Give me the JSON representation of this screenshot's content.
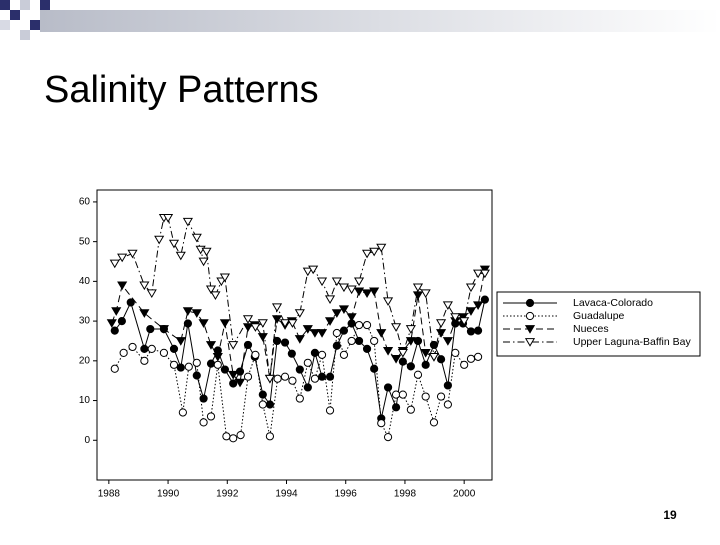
{
  "slide": {
    "title": "Salinity Patterns",
    "page_number": "19"
  },
  "chart_data": {
    "type": "line",
    "xlim": [
      1987.6,
      2000.94
    ],
    "ylim": [
      -10,
      63
    ],
    "xticks": [
      1988,
      1990,
      1992,
      1994,
      1996,
      1998,
      2000
    ],
    "yticks": [
      0,
      10,
      20,
      30,
      40,
      50,
      60
    ],
    "grid": false,
    "legend": "right",
    "series": [
      {
        "name": "Lavaca-Colorado",
        "color": "#000000",
        "marker": "circle",
        "filled": true,
        "linestyle": "solid",
        "x": [
          1988.2,
          1988.44,
          1988.74,
          1989.2,
          1989.4,
          1989.86,
          1990.2,
          1990.43,
          1990.67,
          1990.97,
          1991.2,
          1991.45,
          1991.68,
          1991.92,
          1992.2,
          1992.43,
          1992.7,
          1992.93,
          1993.2,
          1993.44,
          1993.68,
          1993.95,
          1994.18,
          1994.45,
          1994.72,
          1994.96,
          1995.2,
          1995.47,
          1995.7,
          1995.94,
          1996.2,
          1996.45,
          1996.72,
          1996.96,
          1997.2,
          1997.43,
          1997.7,
          1997.93,
          1998.2,
          1998.44,
          1998.7,
          1998.98,
          1999.22,
          1999.45,
          1999.7,
          1999.96,
          2000.23,
          2000.47,
          2000.7
        ],
        "values": [
          27.6,
          30,
          34.7,
          23,
          28,
          28,
          23,
          18.3,
          29.4,
          16.3,
          10.5,
          19.3,
          22.6,
          17.8,
          14.3,
          17.3,
          24,
          21,
          11.5,
          9,
          25,
          24.6,
          21.8,
          17.8,
          13.3,
          22,
          16,
          16,
          23.8,
          27.6,
          29.4,
          25,
          23,
          18,
          5.5,
          13.3,
          8.3,
          19.8,
          18.6,
          25,
          19,
          24,
          20.4,
          13.8,
          29.4,
          29.4,
          27.4,
          27.6,
          35.4
        ]
      },
      {
        "name": "Guadalupe",
        "color": "#000000",
        "marker": "circle",
        "filled": false,
        "linestyle": "dotted",
        "x": [
          1988.2,
          1988.5,
          1988.8,
          1989.2,
          1989.45,
          1989.86,
          1990.2,
          1990.5,
          1990.7,
          1990.97,
          1991.2,
          1991.45,
          1991.68,
          1991.97,
          1992.2,
          1992.45,
          1992.7,
          1992.95,
          1993.2,
          1993.44,
          1993.7,
          1993.95,
          1994.2,
          1994.45,
          1994.72,
          1994.96,
          1995.2,
          1995.47,
          1995.7,
          1995.94,
          1996.2,
          1996.45,
          1996.72,
          1996.96,
          1997.2,
          1997.43,
          1997.7,
          1997.93,
          1998.2,
          1998.44,
          1998.7,
          1998.98,
          1999.22,
          1999.45,
          1999.7,
          2000.0,
          2000.23,
          2000.47
        ],
        "values": [
          18,
          22,
          23.5,
          20,
          23,
          22,
          19,
          7,
          18.5,
          19.5,
          4.5,
          6,
          19,
          1,
          0.5,
          1.3,
          16,
          21.5,
          9,
          1,
          15.5,
          16,
          15,
          10.5,
          19.5,
          15.5,
          21.5,
          7.5,
          27,
          21.5,
          25,
          29,
          29,
          25,
          4.3,
          0.8,
          11.5,
          11.5,
          7.7,
          16.5,
          11,
          4.5,
          11,
          9,
          22,
          19,
          20.5,
          21
        ]
      },
      {
        "name": "Nueces",
        "color": "#000000",
        "marker": "triangle-down",
        "filled": true,
        "linestyle": "dashed",
        "x": [
          1988.1,
          1988.25,
          1988.45,
          1989.2,
          1989.86,
          1990.43,
          1990.67,
          1990.97,
          1991.2,
          1991.45,
          1991.68,
          1991.92,
          1992.2,
          1992.43,
          1992.7,
          1992.93,
          1993.2,
          1993.44,
          1993.68,
          1993.95,
          1994.18,
          1994.45,
          1994.72,
          1994.96,
          1995.2,
          1995.47,
          1995.7,
          1995.94,
          1996.2,
          1996.45,
          1996.72,
          1996.96,
          1997.2,
          1997.43,
          1997.7,
          1997.93,
          1998.2,
          1998.44,
          1998.7,
          1998.98,
          1999.22,
          1999.45,
          1999.7,
          1999.96,
          2000.23,
          2000.47,
          2000.7
        ],
        "values": [
          29.5,
          32.5,
          39,
          32,
          28,
          25,
          32.5,
          32,
          29.5,
          24,
          21,
          29.5,
          16.5,
          14.5,
          28.5,
          29,
          26,
          15.5,
          30.5,
          29,
          30,
          25.5,
          28,
          27,
          27,
          30,
          32,
          33,
          31,
          37.5,
          37,
          37.5,
          27,
          22.5,
          20.5,
          22.5,
          25,
          36.5,
          22,
          21,
          27,
          25,
          30,
          31,
          32.5,
          34,
          43
        ]
      },
      {
        "name": "Upper Laguna-Baffin Bay",
        "color": "#000000",
        "marker": "triangle-down",
        "filled": false,
        "linestyle": "dashdot",
        "x": [
          1988.2,
          1988.45,
          1988.8,
          1989.2,
          1989.45,
          1989.7,
          1989.86,
          1990.0,
          1990.2,
          1990.43,
          1990.67,
          1990.97,
          1991.1,
          1991.2,
          1991.3,
          1991.45,
          1991.6,
          1991.8,
          1991.92,
          1992.2,
          1992.7,
          1992.95,
          1993.2,
          1993.44,
          1993.68,
          1993.95,
          1994.2,
          1994.45,
          1994.72,
          1994.9,
          1995.2,
          1995.47,
          1995.7,
          1995.94,
          1996.2,
          1996.45,
          1996.72,
          1996.96,
          1997.2,
          1997.43,
          1997.7,
          1997.93,
          1998.2,
          1998.44,
          1998.7,
          1998.98,
          1999.22,
          1999.45,
          1999.7,
          2000.0,
          2000.23,
          2000.47,
          2000.7
        ],
        "values": [
          44.5,
          46,
          47,
          39,
          37,
          50.5,
          56,
          56,
          49.5,
          46.5,
          55,
          51,
          48,
          45,
          47.5,
          38,
          36.5,
          40,
          41,
          24,
          30.5,
          28.5,
          29.5,
          15.5,
          33.5,
          29.5,
          29.5,
          32,
          42.5,
          43,
          40,
          35.5,
          40,
          38.5,
          38,
          40,
          47,
          47.5,
          48.5,
          35,
          28.5,
          22,
          28,
          38.5,
          37,
          21,
          29.5,
          34,
          31,
          30,
          38.5,
          42,
          42
        ]
      }
    ]
  }
}
